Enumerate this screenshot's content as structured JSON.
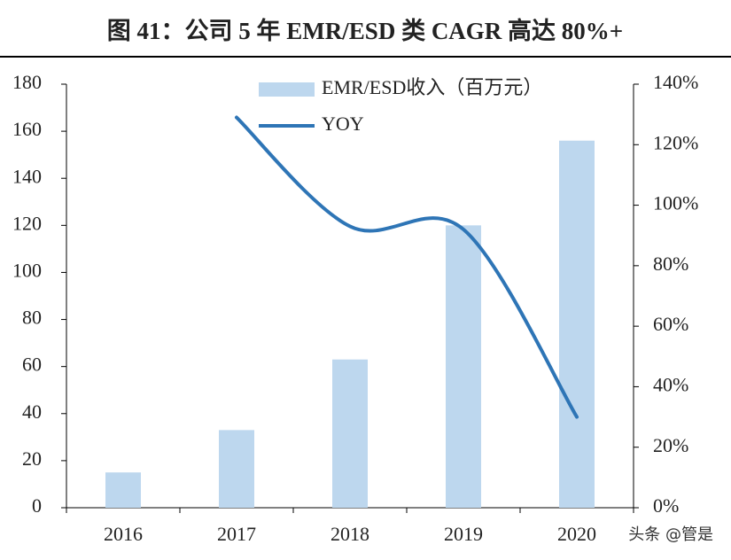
{
  "chart_data": {
    "type": "bar_line",
    "title": "图 41：公司 5 年 EMR/ESD 类 CAGR 高达 80%+",
    "categories": [
      "2016",
      "2017",
      "2018",
      "2019",
      "2020"
    ],
    "series": [
      {
        "name": "EMR/ESD收入（百万元）",
        "color": "#bdd7ee",
        "values": [
          15,
          33,
          63,
          120,
          156
        ]
      },
      {
        "name": "YOY",
        "color": "#2e75b6",
        "axis": "y2",
        "values": [
          null,
          129,
          93,
          92,
          30
        ]
      }
    ],
    "ylim": [
      0,
      180
    ],
    "yticks": [
      0,
      20,
      40,
      60,
      80,
      100,
      120,
      140,
      160,
      180
    ],
    "y2lim": [
      0,
      140
    ],
    "y2ticks": [
      {
        "value": 0,
        "label": "0%"
      },
      {
        "value": 20,
        "label": "20%"
      },
      {
        "value": 40,
        "label": "40%"
      },
      {
        "value": 60,
        "label": "60%"
      },
      {
        "value": 80,
        "label": "80%"
      },
      {
        "value": 100,
        "label": "100%"
      },
      {
        "value": 120,
        "label": "120%"
      },
      {
        "value": 140,
        "label": "140%"
      }
    ],
    "legend": "top",
    "watermark": "头条 @管是"
  }
}
